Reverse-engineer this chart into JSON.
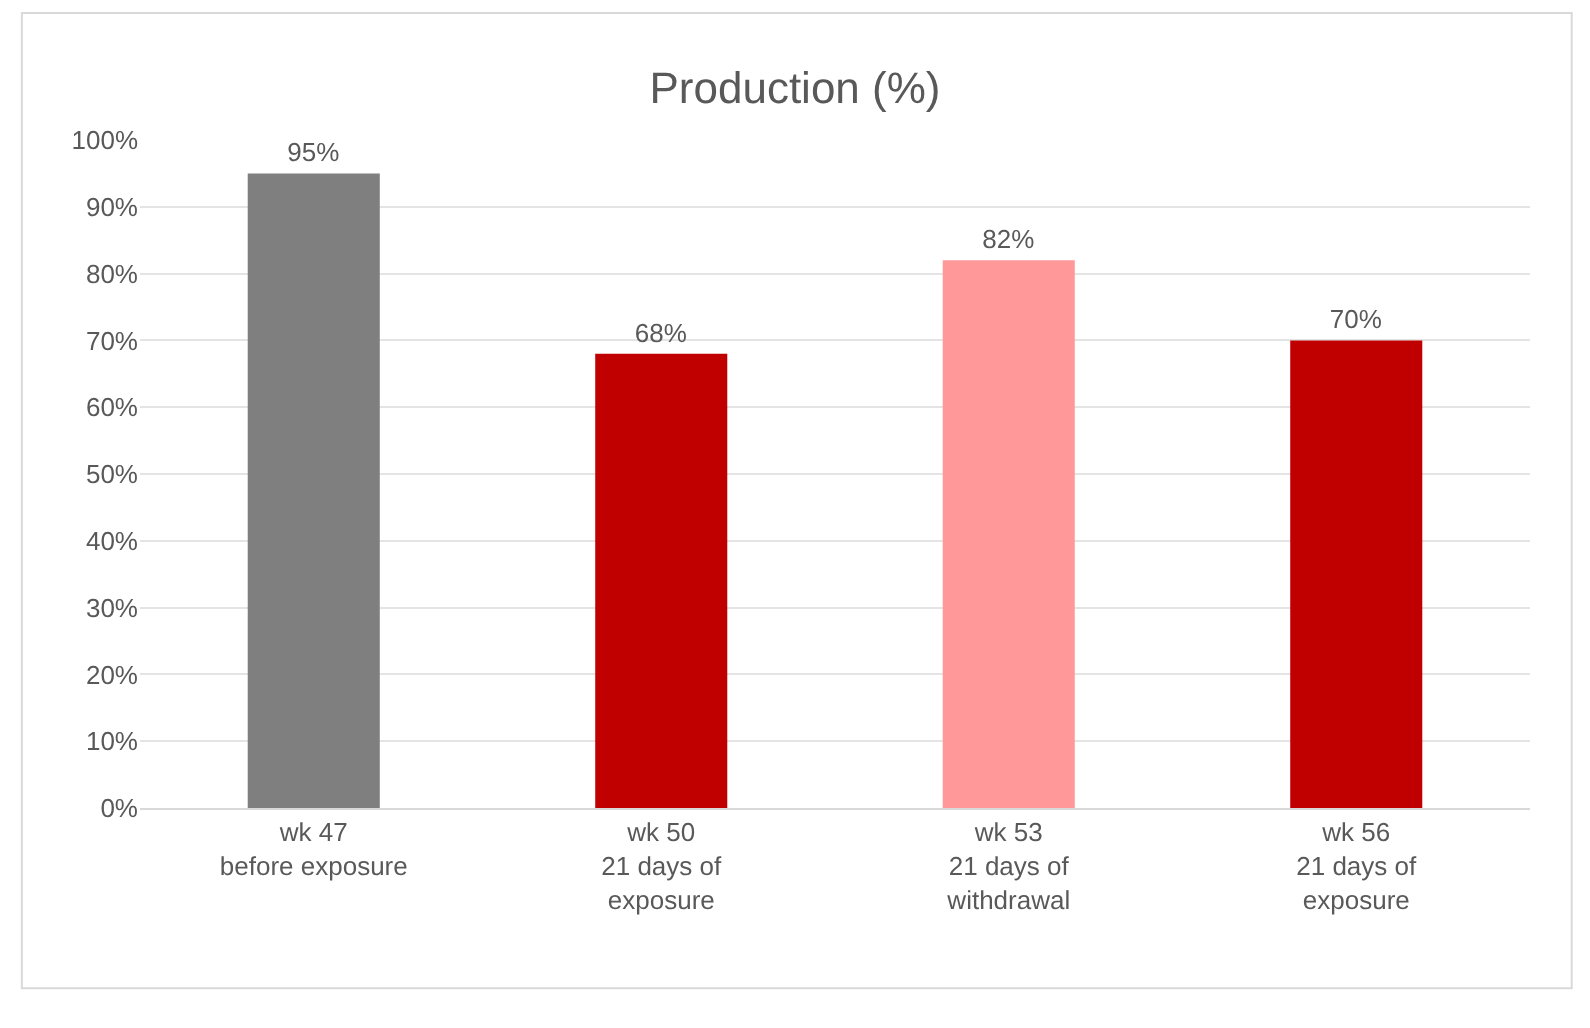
{
  "chart_data": {
    "type": "bar",
    "title": "Production (%)",
    "categories": [
      "wk 47\nbefore exposure",
      "wk 50\n21 days of\nexposure",
      "wk 53\n21 days of\nwithdrawal",
      "wk 56\n21 days of\nexposure"
    ],
    "values": [
      95,
      68,
      82,
      70
    ],
    "colors": [
      "#7f7f7f",
      "#c00000",
      "#ff9999",
      "#c00000"
    ],
    "value_labels": [
      "95%",
      "68%",
      "82%",
      "70%"
    ],
    "ylim": [
      0,
      100
    ],
    "yticks": [
      {
        "value": 0,
        "label": "0%"
      },
      {
        "value": 10,
        "label": "10%"
      },
      {
        "value": 20,
        "label": "20%"
      },
      {
        "value": 30,
        "label": "30%"
      },
      {
        "value": 40,
        "label": "40%"
      },
      {
        "value": 50,
        "label": "50%"
      },
      {
        "value": 60,
        "label": "60%"
      },
      {
        "value": 70,
        "label": "70%"
      },
      {
        "value": 80,
        "label": "80%"
      },
      {
        "value": 90,
        "label": "90%"
      },
      {
        "value": 100,
        "label": "100%"
      }
    ],
    "grid": "y"
  }
}
